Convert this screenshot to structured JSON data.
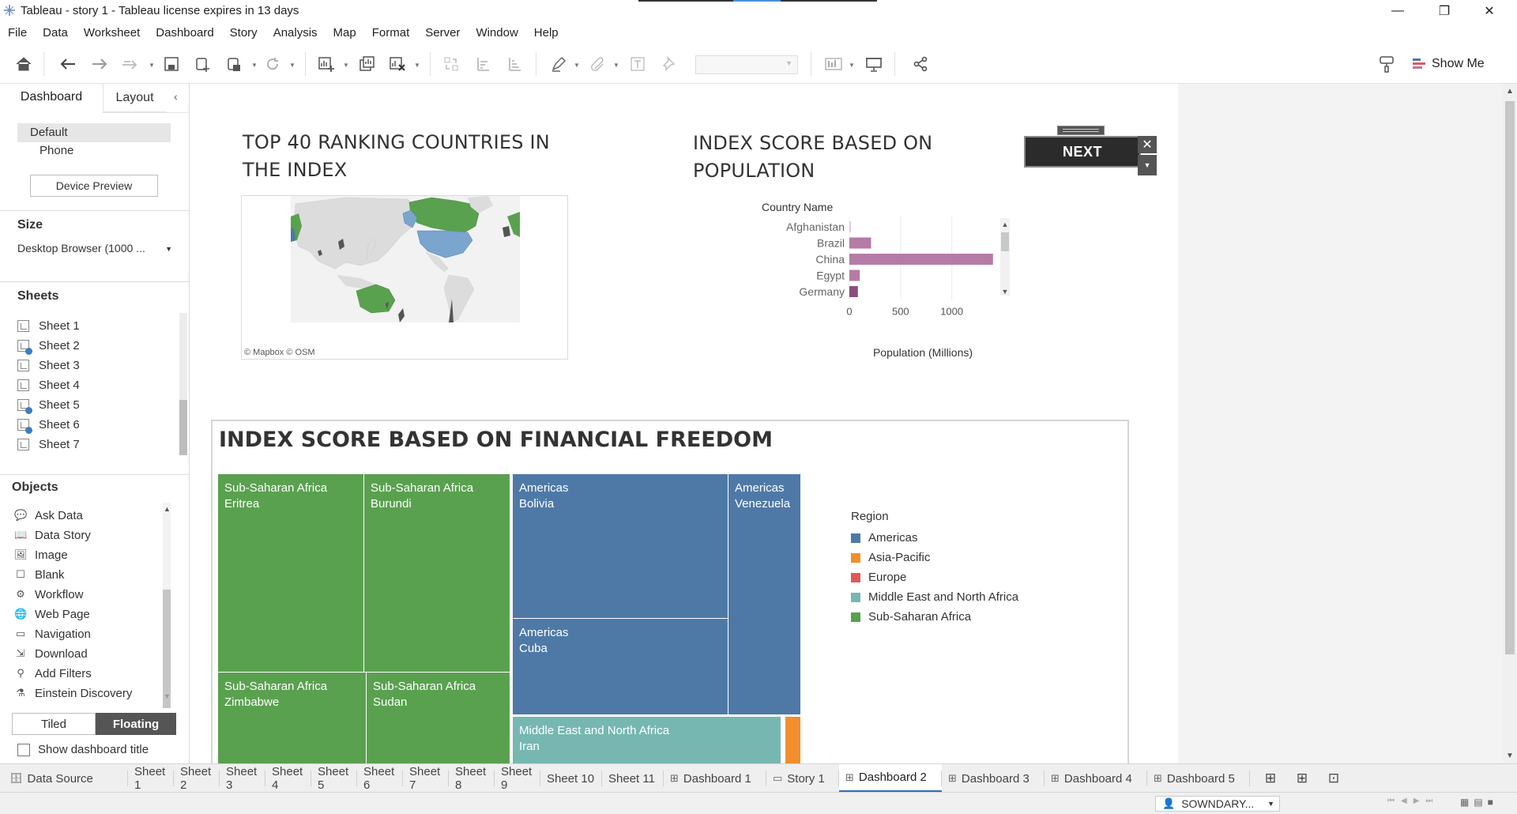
{
  "window": {
    "title": "Tableau - story 1 - Tableau license expires in 13 days",
    "controls": {
      "minimize": "—",
      "restore": "❐",
      "close": "✕"
    }
  },
  "menu": [
    "File",
    "Data",
    "Worksheet",
    "Dashboard",
    "Story",
    "Analysis",
    "Map",
    "Format",
    "Server",
    "Window",
    "Help"
  ],
  "toolbar": {
    "show_me_label": "Show Me"
  },
  "left_pane": {
    "tabs": {
      "dashboard": "Dashboard",
      "layout": "Layout"
    },
    "collapse": "‹",
    "device": {
      "default": "Default",
      "phone": "Phone",
      "preview_button": "Device Preview"
    },
    "size": {
      "header": "Size",
      "value": "Desktop Browser (1000 ..."
    },
    "sheets": {
      "header": "Sheets",
      "items": [
        {
          "label": "Sheet 1",
          "in_use": false
        },
        {
          "label": "Sheet 2",
          "in_use": true
        },
        {
          "label": "Sheet 3",
          "in_use": false
        },
        {
          "label": "Sheet 4",
          "in_use": false
        },
        {
          "label": "Sheet 5",
          "in_use": true
        },
        {
          "label": "Sheet 6",
          "in_use": true
        },
        {
          "label": "Sheet 7",
          "in_use": false
        }
      ]
    },
    "objects": {
      "header": "Objects",
      "items": [
        {
          "label": "Ask Data",
          "icon": "ask-data-icon"
        },
        {
          "label": "Data Story",
          "icon": "data-story-icon"
        },
        {
          "label": "Image",
          "icon": "image-icon"
        },
        {
          "label": "Blank",
          "icon": "blank-icon"
        },
        {
          "label": "Workflow",
          "icon": "workflow-icon"
        },
        {
          "label": "Web Page",
          "icon": "web-page-icon"
        },
        {
          "label": "Navigation",
          "icon": "navigation-icon"
        },
        {
          "label": "Download",
          "icon": "download-icon"
        },
        {
          "label": "Add Filters",
          "icon": "add-filters-icon"
        },
        {
          "label": "Einstein Discovery",
          "icon": "einstein-discovery-icon"
        }
      ]
    },
    "tiled": "Tiled",
    "floating": "Floating",
    "show_title": "Show dashboard title"
  },
  "dashboard": {
    "map_title": "TOP 40 RANKING COUNTRIES IN THE INDEX",
    "map_title_lines": [
      "TOP 40 RANKING COUNTRIES IN",
      "THE INDEX"
    ],
    "map_credit": "© Mapbox © OSM",
    "pop_title_lines": [
      "INDEX SCORE BASED ON",
      "POPULATION"
    ],
    "next_button": "NEXT",
    "tree_title": "INDEX SCORE BASED ON FINANCIAL FREEDOM"
  },
  "chart_data": [
    {
      "type": "bar",
      "orientation": "horizontal",
      "row_header": "Country Name",
      "categories": [
        "Afghanistan",
        "Brazil",
        "China",
        "Egypt",
        "Germany"
      ],
      "values": [
        3,
        212,
        1402,
        102,
        83
      ],
      "xlabel": "Population (Millions)",
      "xticks": [
        "0",
        "500",
        "1000"
      ],
      "xlim": [
        0,
        1450
      ],
      "colors": [
        "#e8c9dc",
        "#b57ba6",
        "#b57ba6",
        "#b57ba6",
        "#8a4f7d"
      ]
    },
    {
      "type": "treemap",
      "title": "INDEX SCORE BASED ON FINANCIAL FREEDOM",
      "legend_title": "Region",
      "legend": [
        {
          "name": "Americas",
          "color": "#4e79a7"
        },
        {
          "name": "Asia-Pacific",
          "color": "#f28e2b"
        },
        {
          "name": "Europe",
          "color": "#e15759"
        },
        {
          "name": "Middle East and North Africa",
          "color": "#76b7b2"
        },
        {
          "name": "Sub-Saharan Africa",
          "color": "#59a14f"
        }
      ],
      "cells": [
        {
          "region": "Sub-Saharan Africa",
          "country": "Eritrea"
        },
        {
          "region": "Sub-Saharan Africa",
          "country": "Burundi"
        },
        {
          "region": "Sub-Saharan Africa",
          "country": "Zimbabwe"
        },
        {
          "region": "Sub-Saharan Africa",
          "country": "Sudan"
        },
        {
          "region": "Americas",
          "country": "Bolivia"
        },
        {
          "region": "Americas",
          "country": "Venezuela"
        },
        {
          "region": "Americas",
          "country": "Cuba"
        },
        {
          "region": "Middle East and North Africa",
          "country": "Iran"
        },
        {
          "region": "Asia-Pacific",
          "country": ""
        }
      ]
    }
  ],
  "bottom_tabs": [
    {
      "label": "Data Source",
      "icon": "database-icon"
    },
    {
      "label": "Sheet 1"
    },
    {
      "label": "Sheet 2"
    },
    {
      "label": "Sheet 3"
    },
    {
      "label": "Sheet 4"
    },
    {
      "label": "Sheet 5"
    },
    {
      "label": "Sheet 6"
    },
    {
      "label": "Sheet 7"
    },
    {
      "label": "Sheet 8"
    },
    {
      "label": "Sheet 9"
    },
    {
      "label": "Sheet 10"
    },
    {
      "label": "Sheet 11"
    },
    {
      "label": "Dashboard 1",
      "icon": "dashboard-icon"
    },
    {
      "label": "Story 1",
      "icon": "story-icon"
    },
    {
      "label": "Dashboard 2",
      "icon": "dashboard-icon",
      "active": true
    },
    {
      "label": "Dashboard 3",
      "icon": "dashboard-icon"
    },
    {
      "label": "Dashboard 4",
      "icon": "dashboard-icon"
    },
    {
      "label": "Dashboard 5",
      "icon": "dashboard-icon"
    }
  ],
  "status": {
    "user": "SOWNDARY..."
  }
}
